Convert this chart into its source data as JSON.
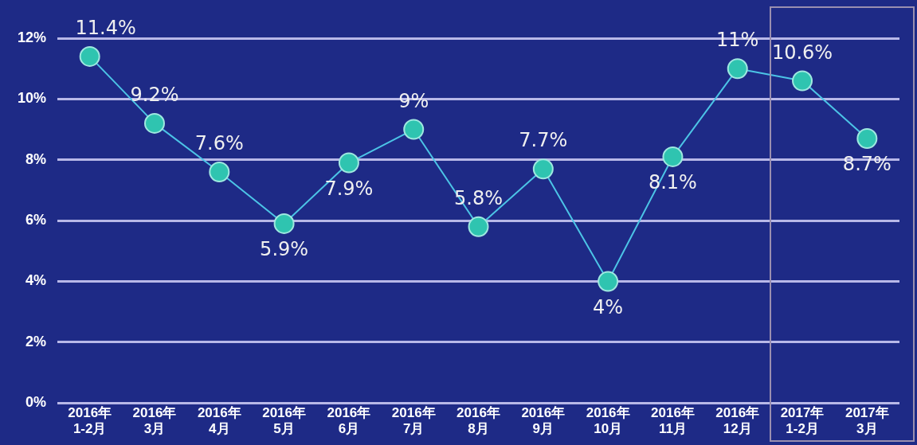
{
  "chart_data": {
    "type": "line",
    "categories": [
      "2016年 1-2月",
      "2016年 3月",
      "2016年 4月",
      "2016年 5月",
      "2016年 6月",
      "2016年 7月",
      "2016年 8月",
      "2016年 9月",
      "2016年 10月",
      "2016年 11月",
      "2016年 12月",
      "2017年 1-2月",
      "2017年 3月"
    ],
    "series": [
      {
        "color": "#4cc4e6",
        "values": [
          11.4,
          9.2,
          7.6,
          5.9,
          7.9,
          9,
          5.8,
          7.7,
          4,
          8.1,
          11,
          10.6,
          8.7
        ],
        "value_labels": [
          "11.4%",
          "9.2%",
          "7.6%",
          "5.9%",
          "7.9%",
          "9%",
          "5.8%",
          "7.7%",
          "4%",
          "8.1%",
          "11%",
          "10.6%",
          "8.7%"
        ]
      }
    ],
    "ylim": [
      0,
      12
    ],
    "yticks": [
      {
        "value": 0,
        "label": "0%"
      },
      {
        "value": 2,
        "label": "2%"
      },
      {
        "value": 4,
        "label": "4%"
      },
      {
        "value": 6,
        "label": "6%"
      },
      {
        "value": 8,
        "label": "8%"
      },
      {
        "value": 10,
        "label": "10%"
      },
      {
        "value": 12,
        "label": "12%"
      }
    ],
    "grid": "y",
    "legend": false,
    "marker": "circle",
    "line_style": "solid"
  }
}
